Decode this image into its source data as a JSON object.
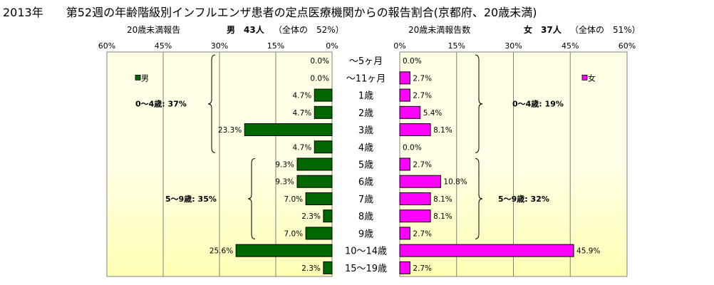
{
  "title": "2013年　　第52週の年齢階級別インフルエンザ患者の定点医療機関からの報告割合(京都府、20歳未満)",
  "left_header": {
    "label": "20歳未満報告",
    "sex": "男",
    "count": "43人",
    "share": "（全体の　52%）"
  },
  "right_header": {
    "label": "20歳未満報告数",
    "sex": "女",
    "count": "37人",
    "share": "（全体の　51%）"
  },
  "colors": {
    "male": "#006600",
    "female": "#ff00ff",
    "plot_top": "#ffffe6",
    "plot_bottom": "#ffffb4"
  },
  "chart_data": {
    "type": "bar",
    "orientation": "horizontal",
    "layout": "butterfly",
    "categories": [
      "～5ヶ月",
      "～11ヶ月",
      "1歳",
      "2歳",
      "3歳",
      "4歳",
      "5歳",
      "6歳",
      "7歳",
      "8歳",
      "9歳",
      "10～14歳",
      "15～19歳"
    ],
    "xlim": [
      0,
      60
    ],
    "tick_values": [
      0,
      15,
      30,
      45,
      60
    ],
    "tick_labels_left": [
      "0%",
      "15%",
      "30%",
      "45%",
      "60%"
    ],
    "tick_labels_right": [
      "0%",
      "15%",
      "30%",
      "45%",
      "60%"
    ],
    "series": [
      {
        "name": "男",
        "side": "left",
        "values": [
          0.0,
          0.0,
          4.7,
          4.7,
          23.3,
          4.7,
          9.3,
          9.3,
          7.0,
          2.3,
          7.0,
          25.6,
          2.3
        ],
        "labels": [
          "0.0%",
          "0.0%",
          "4.7%",
          "4.7%",
          "23.3%",
          "4.7%",
          "9.3%",
          "9.3%",
          "7.0%",
          "2.3%",
          "7.0%",
          "25.6%",
          "2.3%"
        ]
      },
      {
        "name": "女",
        "side": "right",
        "values": [
          0.0,
          2.7,
          2.7,
          5.4,
          8.1,
          0.0,
          2.7,
          10.8,
          8.1,
          8.1,
          2.7,
          45.9,
          2.7
        ],
        "labels": [
          "0.0%",
          "2.7%",
          "2.7%",
          "5.4%",
          "8.1%",
          "0.0%",
          "2.7%",
          "10.8%",
          "8.1%",
          "8.1%",
          "2.7%",
          "45.9%",
          "2.7%"
        ]
      }
    ],
    "annotations": {
      "male_0_4": "0～4歳:  37%",
      "male_5_9": "5～9歳:  35%",
      "female_0_4": "0～4歳:  19%",
      "female_5_9": "5～9歳:  32%"
    },
    "legend_position": "top-inside"
  }
}
